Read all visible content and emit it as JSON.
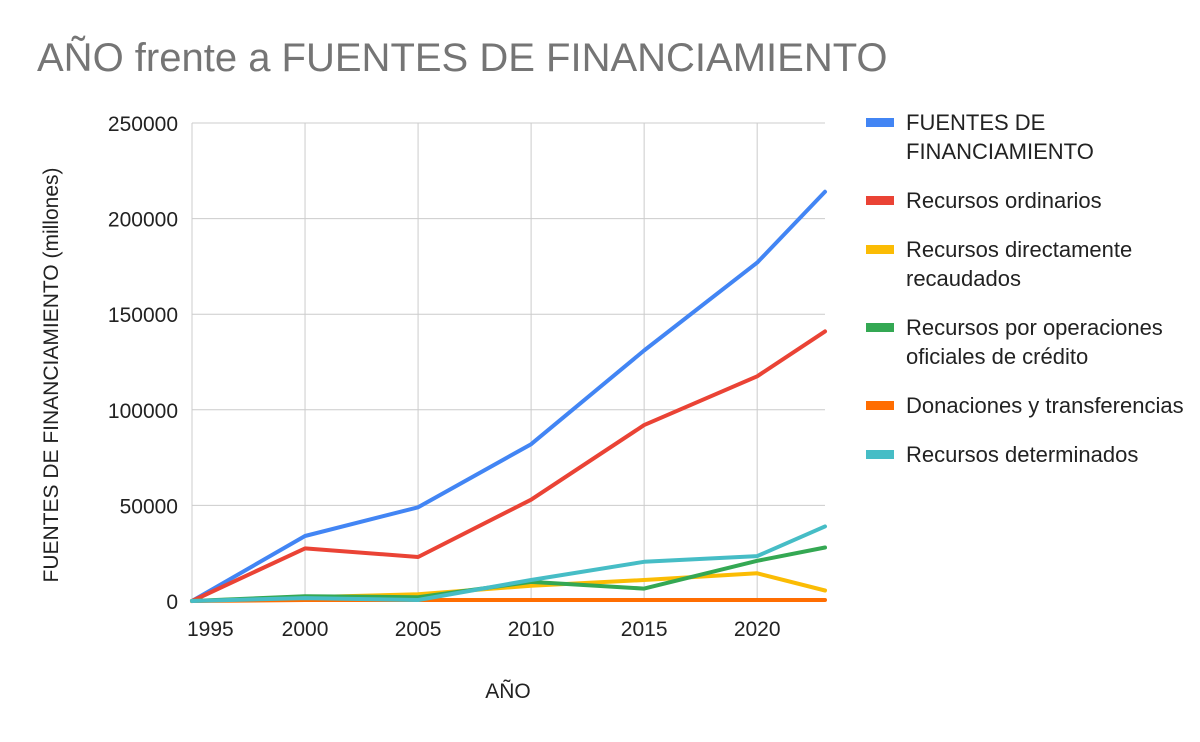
{
  "chart_data": {
    "type": "line",
    "title": "AÑO frente a FUENTES DE FINANCIAMIENTO",
    "xlabel": "AÑO",
    "ylabel": "FUENTES DE FINANCIAMIENTO (millones)",
    "xlim": [
      1995,
      2023
    ],
    "ylim": [
      0,
      250000
    ],
    "xticks": [
      1995,
      2000,
      2005,
      2010,
      2015,
      2020
    ],
    "yticks": [
      0,
      50000,
      100000,
      150000,
      200000,
      250000
    ],
    "grid": true,
    "legend_position": "right",
    "x": [
      1995,
      2000,
      2005,
      2010,
      2015,
      2020,
      2023
    ],
    "series": [
      {
        "name": "FUENTES DE FINANCIAMIENTO",
        "color": "#4285f4",
        "values": [
          0,
          34000,
          49000,
          82000,
          131000,
          177000,
          214000
        ]
      },
      {
        "name": "Recursos ordinarios",
        "color": "#ea4335",
        "values": [
          0,
          27500,
          23000,
          53000,
          92000,
          117500,
          141000
        ]
      },
      {
        "name": "Recursos directamente recaudados",
        "color": "#fbbc04",
        "values": [
          0,
          2000,
          3500,
          8000,
          11000,
          14500,
          5500
        ]
      },
      {
        "name": "Recursos por operaciones oficiales de crédito",
        "color": "#34a853",
        "values": [
          0,
          2500,
          2000,
          10000,
          6500,
          21000,
          28000
        ]
      },
      {
        "name": "Donaciones y transferencias",
        "color": "#ff6d01",
        "values": [
          0,
          500,
          500,
          500,
          500,
          500,
          500
        ]
      },
      {
        "name": "Recursos determinados",
        "color": "#46bdc6",
        "values": [
          0,
          1500,
          500,
          11000,
          20500,
          23500,
          39000
        ]
      }
    ]
  }
}
